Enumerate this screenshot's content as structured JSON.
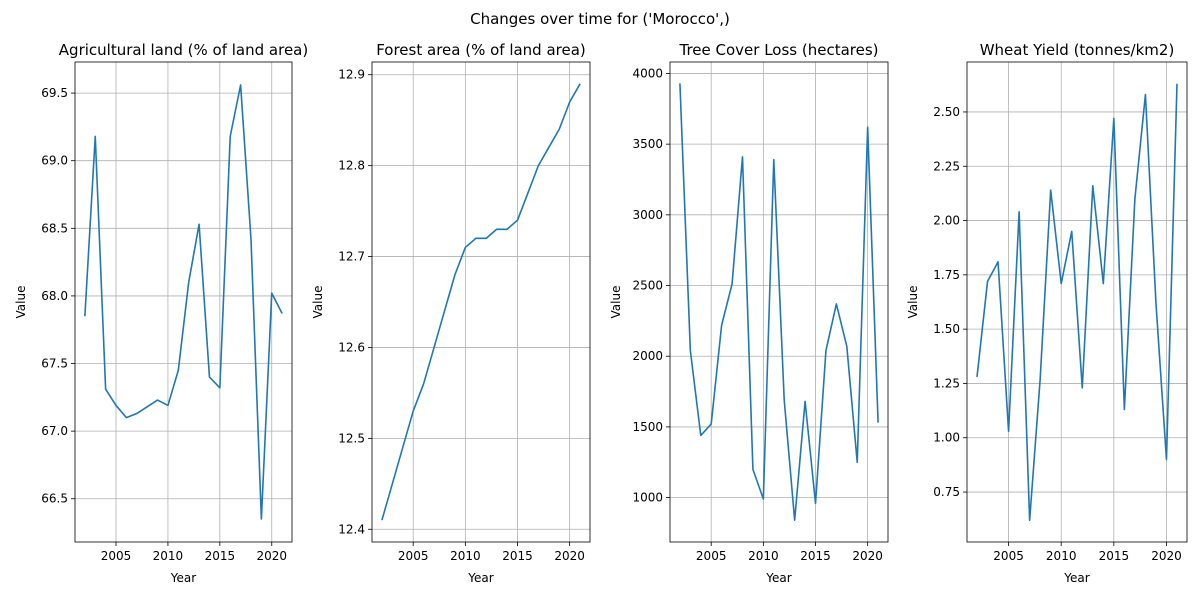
{
  "figure": {
    "title": "Changes over time for ('Morocco',)",
    "line_color": "#1f77b4"
  },
  "chart_data": [
    {
      "type": "line",
      "title": "Agricultural land (% of land area)",
      "xlabel": "Year",
      "ylabel": "Value",
      "grid": true,
      "xlim": [
        2001.05,
        2021.95
      ],
      "ylim": [
        66.18,
        69.73
      ],
      "xticks": [
        2005,
        2010,
        2015,
        2020
      ],
      "yticks": [
        66.5,
        67.0,
        67.5,
        68.0,
        68.5,
        69.0,
        69.5
      ],
      "ytick_labels": [
        "66.5",
        "67.0",
        "67.5",
        "68.0",
        "68.5",
        "69.0",
        "69.5"
      ],
      "x": [
        2002,
        2003,
        2004,
        2005,
        2006,
        2007,
        2008,
        2009,
        2010,
        2011,
        2012,
        2013,
        2014,
        2015,
        2016,
        2017,
        2018,
        2019,
        2020,
        2021
      ],
      "y": [
        67.85,
        69.18,
        67.31,
        67.19,
        67.1,
        67.13,
        67.18,
        67.23,
        67.19,
        67.45,
        68.1,
        68.53,
        67.4,
        67.32,
        69.18,
        69.56,
        68.42,
        66.35,
        68.02,
        67.87
      ]
    },
    {
      "type": "line",
      "title": "Forest area (% of land area)",
      "xlabel": "Year",
      "ylabel": "Value",
      "grid": true,
      "xlim": [
        2001.05,
        2021.95
      ],
      "ylim": [
        12.386,
        12.914
      ],
      "xticks": [
        2005,
        2010,
        2015,
        2020
      ],
      "yticks": [
        12.4,
        12.5,
        12.6,
        12.7,
        12.8,
        12.9
      ],
      "ytick_labels": [
        "12.4",
        "12.5",
        "12.6",
        "12.7",
        "12.8",
        "12.9"
      ],
      "x": [
        2002,
        2003,
        2004,
        2005,
        2006,
        2007,
        2008,
        2009,
        2010,
        2011,
        2012,
        2013,
        2014,
        2015,
        2016,
        2017,
        2018,
        2019,
        2020,
        2021
      ],
      "y": [
        12.41,
        12.45,
        12.49,
        12.53,
        12.56,
        12.6,
        12.64,
        12.68,
        12.71,
        12.72,
        12.72,
        12.73,
        12.73,
        12.74,
        12.77,
        12.8,
        12.82,
        12.84,
        12.87,
        12.89
      ]
    },
    {
      "type": "line",
      "title": "Tree Cover Loss (hectares)",
      "xlabel": "Year",
      "ylabel": "Value",
      "grid": true,
      "xlim": [
        2001.05,
        2021.95
      ],
      "ylim": [
        686,
        4081
      ],
      "xticks": [
        2005,
        2010,
        2015,
        2020
      ],
      "yticks": [
        1000,
        1500,
        2000,
        2500,
        3000,
        3500,
        4000
      ],
      "ytick_labels": [
        "1000",
        "1500",
        "2000",
        "2500",
        "3000",
        "3500",
        "4000"
      ],
      "x": [
        2002,
        2003,
        2004,
        2005,
        2006,
        2007,
        2008,
        2009,
        2010,
        2011,
        2012,
        2013,
        2014,
        2015,
        2016,
        2017,
        2018,
        2019,
        2020,
        2021
      ],
      "y": [
        3930,
        2040,
        1440,
        1520,
        2220,
        2510,
        3410,
        1200,
        990,
        3390,
        1690,
        840,
        1680,
        960,
        2040,
        2370,
        2070,
        1250,
        3620,
        1530
      ]
    },
    {
      "type": "line",
      "title": "Wheat Yield (tonnes/km2)",
      "xlabel": "Year",
      "ylabel": "Value",
      "grid": true,
      "xlim": [
        2001.05,
        2021.95
      ],
      "ylim": [
        0.52,
        2.73
      ],
      "xticks": [
        2005,
        2010,
        2015,
        2020
      ],
      "yticks": [
        0.75,
        1.0,
        1.25,
        1.5,
        1.75,
        2.0,
        2.25,
        2.5
      ],
      "ytick_labels": [
        "0.75",
        "1.00",
        "1.25",
        "1.50",
        "1.75",
        "2.00",
        "2.25",
        "2.50"
      ],
      "x": [
        2002,
        2003,
        2004,
        2005,
        2006,
        2007,
        2008,
        2009,
        2010,
        2011,
        2012,
        2013,
        2014,
        2015,
        2016,
        2017,
        2018,
        2019,
        2020,
        2021
      ],
      "y": [
        1.28,
        1.72,
        1.81,
        1.03,
        2.04,
        0.62,
        1.27,
        2.14,
        1.71,
        1.95,
        1.23,
        2.16,
        1.71,
        2.47,
        1.13,
        2.1,
        2.58,
        1.62,
        0.9,
        2.63
      ]
    }
  ]
}
